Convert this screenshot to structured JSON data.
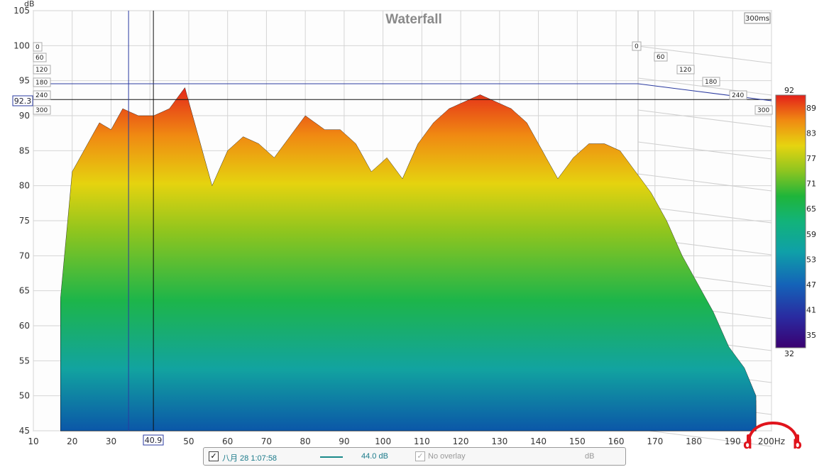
{
  "chart_data": {
    "type": "waterfall",
    "title": "Waterfall",
    "window_label": "300ms",
    "yunit": "dB",
    "ylim": [
      45,
      105
    ],
    "y_ticks": [
      45,
      50,
      55,
      60,
      65,
      70,
      75,
      80,
      85,
      90,
      95,
      100,
      105
    ],
    "x_unit": "Hz",
    "xlim": [
      10,
      200
    ],
    "x_ticks": [
      "10",
      "20",
      "30",
      "40",
      "50",
      "60",
      "70",
      "80",
      "90",
      "100",
      "110",
      "120",
      "130",
      "140",
      "150",
      "160",
      "170",
      "180",
      "190",
      "200Hz"
    ],
    "time_ticks_left": [
      "0",
      "60",
      "120",
      "180",
      "240",
      "300"
    ],
    "time_ticks_right": [
      "0",
      "60",
      "120",
      "180",
      "240",
      "300"
    ],
    "cursor": {
      "freq_readout": "40.9",
      "level_readout": "92.3"
    },
    "colorbar": {
      "max": "92",
      "min": "32",
      "ticks": [
        "89",
        "83",
        "77",
        "71",
        "65",
        "59",
        "53",
        "47",
        "41",
        "35"
      ]
    },
    "front_slice_response": {
      "x": [
        17,
        20,
        24,
        27,
        30,
        33,
        37,
        41,
        45,
        49,
        52,
        56,
        60,
        64,
        68,
        72,
        76,
        80,
        85,
        89,
        93,
        97,
        101,
        105,
        109,
        113,
        117,
        121,
        125,
        129,
        133,
        137,
        141,
        145,
        149,
        153,
        157,
        161,
        165,
        169,
        173,
        177,
        181,
        185,
        189,
        193,
        196
      ],
      "y": [
        64,
        82,
        86,
        89,
        88,
        91,
        90,
        90,
        91,
        94,
        88,
        80,
        85,
        87,
        86,
        84,
        87,
        90,
        88,
        88,
        86,
        82,
        84,
        81,
        86,
        89,
        91,
        92,
        93,
        92,
        91,
        89,
        85,
        81,
        84,
        86,
        86,
        85,
        82,
        79,
        75,
        70,
        66,
        62,
        57,
        54,
        50
      ]
    }
  },
  "legend": {
    "entry_label": "八月 28 1:07:58",
    "entry_value": "44.0 dB",
    "overlay_label": "No overlay",
    "overlay_unit": "dB",
    "entry_color": "#1a8a8a"
  },
  "brand": {
    "letters": "d b"
  }
}
